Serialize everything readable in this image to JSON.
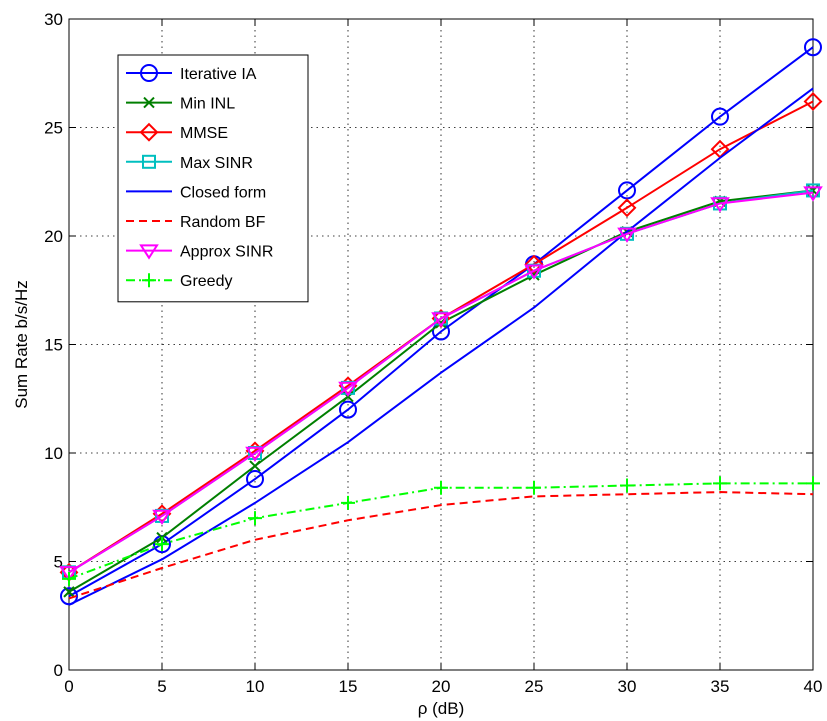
{
  "chart_data": {
    "type": "line",
    "xlabel": "ρ (dB)",
    "ylabel": "Sum Rate b/s/Hz",
    "xlim": [
      0,
      40
    ],
    "ylim": [
      0,
      30
    ],
    "x_ticks": [
      "0",
      "5",
      "10",
      "15",
      "20",
      "25",
      "30",
      "35",
      "40"
    ],
    "y_ticks": [
      "0",
      "5",
      "10",
      "15",
      "20",
      "25",
      "30"
    ],
    "grid": true,
    "legend_position": "top-left",
    "x": [
      0,
      5,
      10,
      15,
      20,
      25,
      30,
      35,
      40
    ],
    "series": [
      {
        "name": "Iterative IA",
        "color": "#0000ff",
        "marker": "circle",
        "dash": "solid",
        "values": [
          3.4,
          5.8,
          8.8,
          12.0,
          15.6,
          18.7,
          22.1,
          25.5,
          28.7
        ]
      },
      {
        "name": "Min INL",
        "color": "#007f00",
        "marker": "x",
        "dash": "solid",
        "values": [
          3.6,
          6.1,
          9.4,
          12.6,
          16.0,
          18.2,
          20.2,
          21.6,
          22.1
        ]
      },
      {
        "name": "MMSE",
        "color": "#ff0000",
        "marker": "diamond",
        "dash": "solid",
        "values": [
          4.5,
          7.2,
          10.1,
          13.1,
          16.2,
          18.7,
          21.3,
          24.0,
          26.2
        ]
      },
      {
        "name": "Max SINR",
        "color": "#00bfbf",
        "marker": "square",
        "dash": "solid",
        "values": [
          4.5,
          7.1,
          10.0,
          13.0,
          16.2,
          18.4,
          20.1,
          21.5,
          22.1
        ]
      },
      {
        "name": "Closed form",
        "color": "#0000ff",
        "marker": "none",
        "dash": "solid",
        "values": [
          3.0,
          5.1,
          7.7,
          10.5,
          13.7,
          16.7,
          20.2,
          23.6,
          26.8
        ]
      },
      {
        "name": "Random BF",
        "color": "#ff0000",
        "marker": "none",
        "dash": "dashed",
        "values": [
          3.3,
          4.7,
          6.0,
          6.9,
          7.6,
          8.0,
          8.1,
          8.2,
          8.1
        ]
      },
      {
        "name": "Approx SINR",
        "color": "#ff00ff",
        "marker": "triangle-down",
        "dash": "solid",
        "values": [
          4.5,
          7.1,
          10.0,
          13.0,
          16.2,
          18.4,
          20.1,
          21.5,
          22.0
        ]
      },
      {
        "name": "Greedy",
        "color": "#00ff00",
        "marker": "plus",
        "dash": "dashdot",
        "values": [
          4.2,
          5.8,
          7.0,
          7.7,
          8.4,
          8.4,
          8.5,
          8.6,
          8.6
        ]
      }
    ]
  }
}
